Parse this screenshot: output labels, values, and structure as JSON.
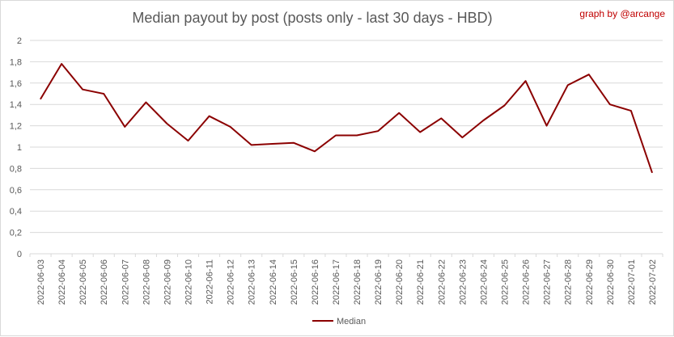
{
  "title": "Median payout by post (posts only - last 30 days - HBD)",
  "credit": "graph by @arcange",
  "colors": {
    "series": "#8b0000",
    "grid": "#d9d9d9",
    "text": "#595959",
    "credit": "#c00000"
  },
  "chart_data": {
    "type": "line",
    "title": "Median payout by post (posts only - last 30 days - HBD)",
    "xlabel": "",
    "ylabel": "",
    "ylim": [
      0,
      2
    ],
    "yticks": [
      "0",
      "0,2",
      "0,4",
      "0,6",
      "0,8",
      "1",
      "1,2",
      "1,4",
      "1,6",
      "1,8",
      "2"
    ],
    "yticks_values": [
      0,
      0.2,
      0.4,
      0.6,
      0.8,
      1,
      1.2,
      1.4,
      1.6,
      1.8,
      2
    ],
    "grid": true,
    "legend": "bottom",
    "categories": [
      "2022-06-03",
      "2022-06-04",
      "2022-06-05",
      "2022-06-06",
      "2022-06-07",
      "2022-06-08",
      "2022-06-09",
      "2022-06-10",
      "2022-06-11",
      "2022-06-12",
      "2022-06-13",
      "2022-06-14",
      "2022-06-15",
      "2022-06-16",
      "2022-06-17",
      "2022-06-18",
      "2022-06-19",
      "2022-06-20",
      "2022-06-21",
      "2022-06-22",
      "2022-06-23",
      "2022-06-24",
      "2022-06-25",
      "2022-06-26",
      "2022-06-27",
      "2022-06-28",
      "2022-06-29",
      "2022-06-30",
      "2022-07-01",
      "2022-07-02"
    ],
    "series": [
      {
        "name": "Median",
        "values": [
          1.45,
          1.78,
          1.54,
          1.5,
          1.19,
          1.42,
          1.22,
          1.06,
          1.29,
          1.19,
          1.02,
          1.03,
          1.04,
          0.96,
          1.11,
          1.11,
          1.15,
          1.32,
          1.14,
          1.27,
          1.09,
          1.25,
          1.39,
          1.62,
          1.2,
          1.58,
          1.68,
          1.4,
          1.34,
          0.76
        ]
      }
    ]
  }
}
